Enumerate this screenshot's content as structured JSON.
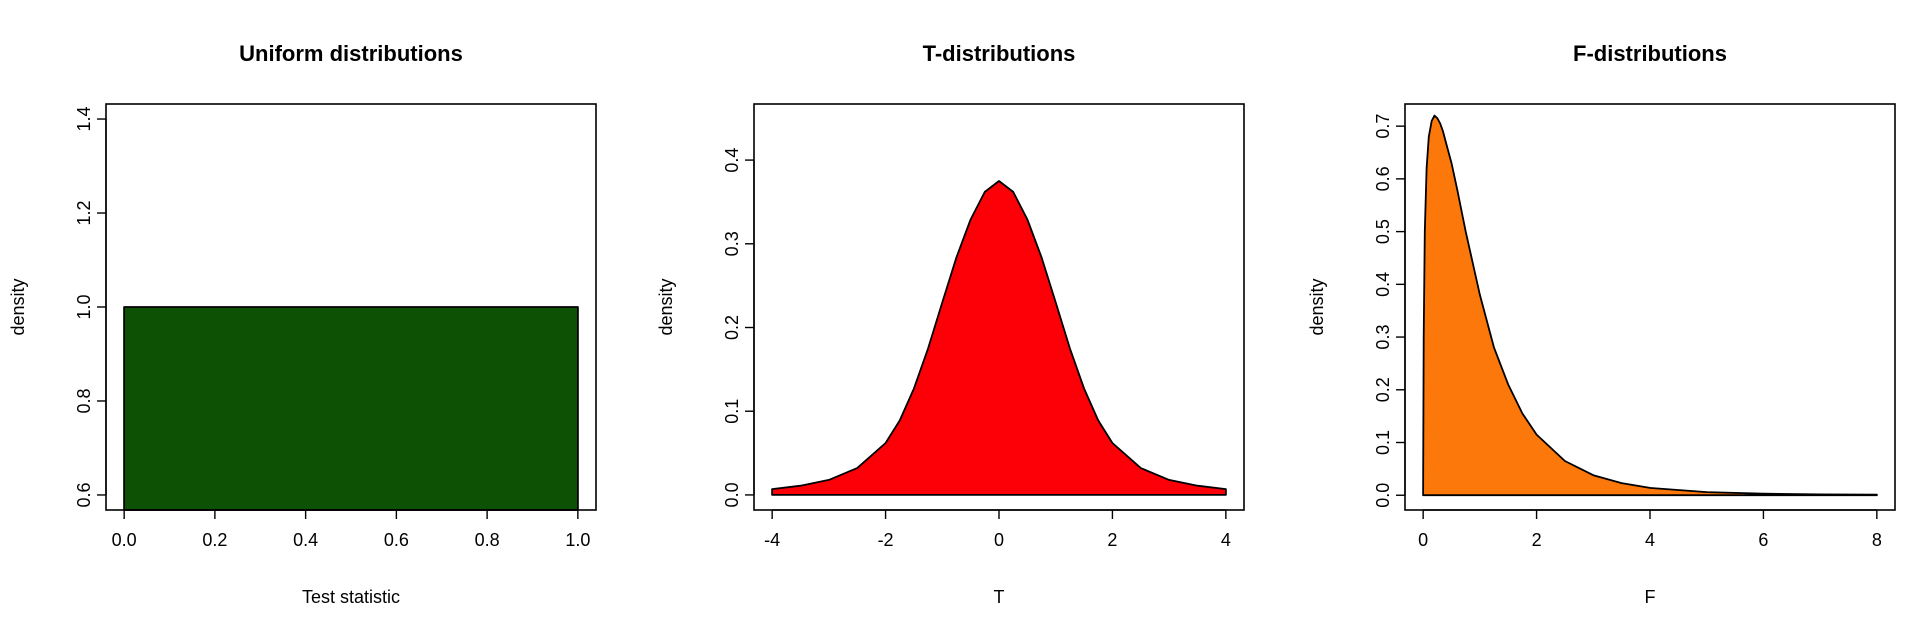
{
  "chart_data": [
    {
      "type": "area",
      "title": "Uniform distributions",
      "xlabel": "Test statistic",
      "ylabel": "density",
      "xlim": [
        -0.04,
        1.04
      ],
      "ylim": [
        0.568,
        1.432
      ],
      "xticks": [
        0.0,
        0.2,
        0.4,
        0.6,
        0.8,
        1.0
      ],
      "xtick_labels": [
        "0.0",
        "0.2",
        "0.4",
        "0.6",
        "0.8",
        "1.0"
      ],
      "yticks": [
        0.6,
        0.8,
        1.0,
        1.2,
        1.4
      ],
      "ytick_labels": [
        "0.6",
        "0.8",
        "1.0",
        "1.2",
        "1.4"
      ],
      "fill_color": "#0d5204",
      "series": [
        {
          "x": [
            0.0,
            0.0,
            1.0,
            1.0
          ],
          "y": [
            0.568,
            1.0,
            1.0,
            0.568
          ]
        }
      ]
    },
    {
      "type": "area",
      "title": "T-distributions",
      "xlabel": "T",
      "ylabel": "density",
      "xlim": [
        -4.32,
        4.32
      ],
      "ylim": [
        -0.018,
        0.467
      ],
      "xticks": [
        -4,
        -2,
        0,
        2,
        4
      ],
      "xtick_labels": [
        "-4",
        "-2",
        "0",
        "2",
        "4"
      ],
      "yticks": [
        0.0,
        0.1,
        0.2,
        0.3,
        0.4
      ],
      "ytick_labels": [
        "0.0",
        "0.1",
        "0.2",
        "0.3",
        "0.4"
      ],
      "fill_color": "#fd0007",
      "series": [
        {
          "x": [
            -4,
            -3.5,
            -3,
            -2.5,
            -2,
            -1.75,
            -1.5,
            -1.25,
            -1,
            -0.75,
            -0.5,
            -0.25,
            0,
            0.25,
            0.5,
            0.75,
            1,
            1.25,
            1.5,
            1.75,
            2,
            2.5,
            3,
            3.5,
            4
          ],
          "y": [
            0.007,
            0.011,
            0.018,
            0.032,
            0.062,
            0.089,
            0.127,
            0.175,
            0.23,
            0.284,
            0.329,
            0.362,
            0.375,
            0.362,
            0.329,
            0.284,
            0.23,
            0.175,
            0.127,
            0.089,
            0.062,
            0.032,
            0.018,
            0.011,
            0.007
          ]
        }
      ]
    },
    {
      "type": "area",
      "title": "F-distributions",
      "xlabel": "F",
      "ylabel": "density",
      "xlim": [
        -0.32,
        8.32
      ],
      "ylim": [
        -0.028,
        0.742
      ],
      "xticks": [
        0,
        2,
        4,
        6,
        8
      ],
      "xtick_labels": [
        "0",
        "2",
        "4",
        "6",
        "8"
      ],
      "yticks": [
        0.0,
        0.1,
        0.2,
        0.3,
        0.4,
        0.5,
        0.6,
        0.7
      ],
      "ytick_labels": [
        "0.0",
        "0.1",
        "0.2",
        "0.3",
        "0.4",
        "0.5",
        "0.6",
        "0.7"
      ],
      "fill_color": "#fd780a",
      "series": [
        {
          "x": [
            0,
            0.01,
            0.03,
            0.06,
            0.1,
            0.15,
            0.2,
            0.25,
            0.3,
            0.35,
            0.4,
            0.5,
            0.6,
            0.75,
            1.0,
            1.25,
            1.5,
            1.75,
            2.0,
            2.5,
            3.0,
            3.5,
            4.0,
            5.0,
            6.0,
            7.0,
            8.0
          ],
          "y": [
            0,
            0.3,
            0.5,
            0.62,
            0.68,
            0.71,
            0.72,
            0.715,
            0.705,
            0.69,
            0.67,
            0.63,
            0.58,
            0.5,
            0.38,
            0.28,
            0.21,
            0.155,
            0.115,
            0.065,
            0.038,
            0.023,
            0.014,
            0.006,
            0.003,
            0.0015,
            0.001
          ]
        }
      ]
    }
  ]
}
